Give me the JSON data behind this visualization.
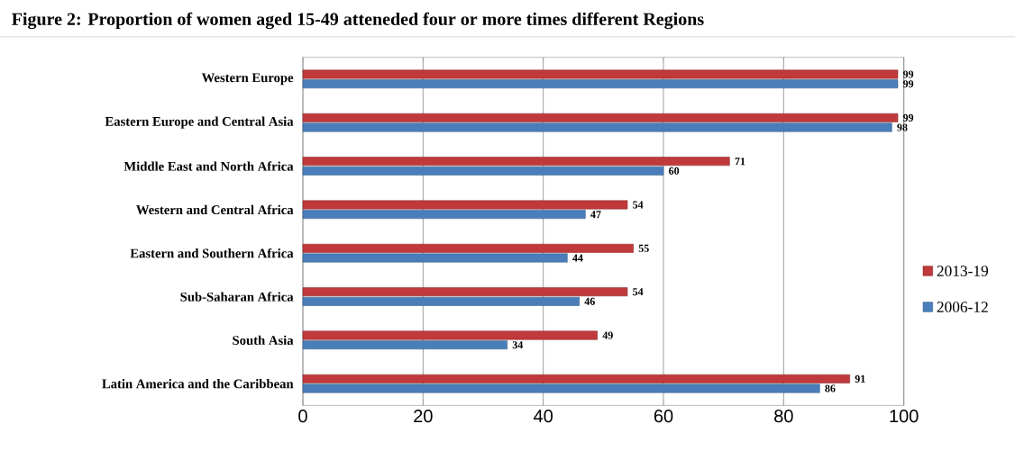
{
  "chart_data": {
    "type": "bar",
    "orientation": "horizontal",
    "title": "Figure 2: Proportion of women aged 15-49 atteneded four or more times different Regions",
    "categories": [
      "Western Europe",
      "Eastern Europe and Central Asia",
      "Middle East and North Africa",
      "Western and Central Africa",
      "Eastern and Southern Africa",
      "Sub-Saharan Africa",
      "South Asia",
      "Latin America and the Caribbean"
    ],
    "series": [
      {
        "name": "2013-19",
        "color": "#c0393b",
        "values": [
          99,
          99,
          71,
          54,
          55,
          54,
          49,
          91
        ]
      },
      {
        "name": "2006-12",
        "color": "#4a7ebb",
        "values": [
          99,
          98,
          60,
          47,
          44,
          46,
          34,
          86
        ]
      }
    ],
    "xlim": [
      0,
      100
    ],
    "xticks": [
      0,
      20,
      40,
      60,
      80,
      100
    ],
    "grid": "x",
    "legend": "right",
    "data_labels": true
  }
}
